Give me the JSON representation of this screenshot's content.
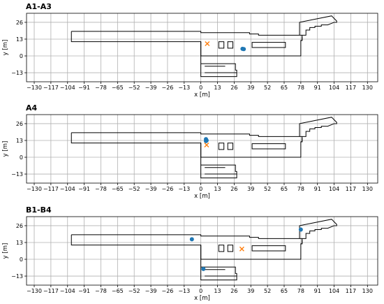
{
  "chart_data": [
    {
      "type": "scatter",
      "title": "A1-A3",
      "xlabel": "x [m]",
      "ylabel": "y [m]",
      "xlim": [
        -136,
        138
      ],
      "ylim": [
        -20,
        33
      ],
      "xticks": [
        -130,
        -117,
        -104,
        -91,
        -78,
        -65,
        -52,
        -39,
        -26,
        -13,
        0,
        13,
        26,
        39,
        52,
        65,
        78,
        91,
        104,
        117,
        130
      ],
      "yticks": [
        -13,
        0,
        13,
        26
      ],
      "grid": true,
      "series": [
        {
          "marker": "circle",
          "color": "#1f77b4",
          "points": [
            [
              32.5,
              5.5
            ],
            [
              33.5,
              5.3
            ]
          ]
        },
        {
          "marker": "x",
          "color": "#ff7f0e",
          "points": [
            [
              5,
              9.5
            ]
          ]
        }
      ]
    },
    {
      "type": "scatter",
      "title": "A4",
      "xlabel": "x [m]",
      "ylabel": "y [m]",
      "xlim": [
        -136,
        138
      ],
      "ylim": [
        -20,
        33
      ],
      "xticks": [
        -130,
        -117,
        -104,
        -91,
        -78,
        -65,
        -52,
        -39,
        -26,
        -13,
        0,
        13,
        26,
        39,
        52,
        65,
        78,
        91,
        104,
        117,
        130
      ],
      "yticks": [
        -13,
        0,
        13,
        26
      ],
      "grid": true,
      "series": [
        {
          "marker": "circle",
          "color": "#1f77b4",
          "points": [
            [
              4,
              14
            ],
            [
              4.5,
              13
            ],
            [
              4,
              12.5
            ]
          ]
        },
        {
          "marker": "x",
          "color": "#ff7f0e",
          "points": [
            [
              4.5,
              9.5
            ]
          ]
        }
      ]
    },
    {
      "type": "scatter",
      "title": "B1-B4",
      "xlabel": "x [m]",
      "ylabel": "y [m]",
      "xlim": [
        -136,
        138
      ],
      "ylim": [
        -20,
        33
      ],
      "xticks": [
        -130,
        -117,
        -104,
        -91,
        -78,
        -65,
        -52,
        -39,
        -26,
        -13,
        0,
        13,
        26,
        39,
        52,
        65,
        78,
        91,
        104,
        117,
        130
      ],
      "yticks": [
        -13,
        0,
        13,
        26
      ],
      "grid": true,
      "series": [
        {
          "marker": "circle",
          "color": "#1f77b4",
          "points": [
            [
              -7,
              15.5
            ],
            [
              2,
              -7.5
            ],
            [
              78,
              23
            ]
          ]
        },
        {
          "marker": "x",
          "color": "#ff7f0e",
          "points": [
            [
              32,
              8
            ]
          ]
        }
      ]
    }
  ],
  "floorplan": {
    "stroke": "#000000",
    "polylines": [
      [
        [
          -101,
          19
        ],
        [
          -101,
          11
        ],
        [
          0,
          11
        ],
        [
          0,
          -16
        ],
        [
          28,
          -16
        ],
        [
          28,
          -11
        ],
        [
          27,
          -11
        ],
        [
          27,
          -6
        ],
        [
          3,
          -6
        ],
        [
          0,
          -6
        ]
      ],
      [
        [
          -101,
          19
        ],
        [
          0,
          19
        ],
        [
          0,
          18
        ],
        [
          38,
          18
        ],
        [
          38,
          17
        ],
        [
          45,
          17
        ],
        [
          45,
          16
        ],
        [
          79,
          16
        ],
        [
          79,
          15
        ],
        [
          79,
          12
        ],
        [
          78,
          12
        ],
        [
          78,
          0
        ],
        [
          0,
          0
        ],
        [
          0,
          11
        ]
      ],
      [
        [
          3,
          -8
        ],
        [
          19,
          -8
        ]
      ],
      [
        [
          3,
          -13
        ],
        [
          28,
          -13
        ]
      ],
      [
        [
          78,
          12
        ],
        [
          79,
          12
        ],
        [
          79,
          15
        ]
      ],
      [
        [
          79,
          16
        ],
        [
          82,
          16
        ],
        [
          82,
          20
        ],
        [
          85,
          20
        ],
        [
          85,
          22
        ],
        [
          89,
          22
        ],
        [
          89,
          23
        ],
        [
          94,
          23
        ],
        [
          94,
          24
        ],
        [
          99,
          24
        ],
        [
          104,
          26
        ],
        [
          106,
          26
        ],
        [
          106,
          27
        ],
        [
          102,
          31
        ],
        [
          77,
          26
        ],
        [
          77,
          16
        ]
      ]
    ],
    "rects": [
      [
        [
          14,
          6
        ],
        [
          18,
          11
        ]
      ],
      [
        [
          21,
          6
        ],
        [
          25,
          11
        ]
      ],
      [
        [
          40,
          6.5
        ],
        [
          66,
          10.5
        ]
      ]
    ]
  }
}
